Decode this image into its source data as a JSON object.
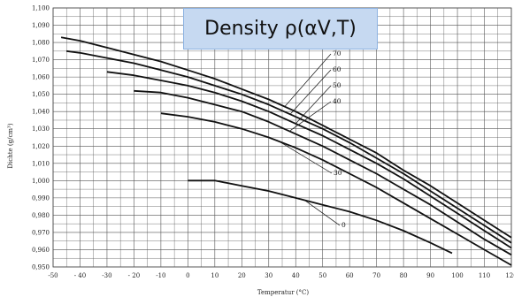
{
  "chart_data": {
    "type": "line",
    "title": "Density ρ(αV,T)",
    "xlabel": "Temperatur (°C)",
    "ylabel": "Dichte (g/cm³)",
    "xlim": [
      -50,
      120
    ],
    "ylim": [
      0.95,
      1.1
    ],
    "x_ticks": [
      "-50",
      "- 40",
      "-30",
      "- 20",
      "-10",
      "0",
      "10",
      "20",
      "30",
      "40",
      "50",
      "60",
      "70",
      "80",
      "90",
      "100",
      "110",
      "120"
    ],
    "y_ticks": [
      "0,950",
      "0,960",
      "0,970",
      "0,980",
      "0,990",
      "1,000",
      "1,010",
      "1,020",
      "1,030",
      "1,040",
      "1,050",
      "1,060",
      "1,070",
      "1,080",
      "1,090",
      "1,100"
    ],
    "grid": true,
    "series": [
      {
        "name": "0",
        "points": [
          [
            0,
            1.0
          ],
          [
            10,
            1.0
          ],
          [
            20,
            0.997
          ],
          [
            30,
            0.994
          ],
          [
            40,
            0.99
          ],
          [
            50,
            0.986
          ],
          [
            60,
            0.982
          ],
          [
            70,
            0.977
          ],
          [
            80,
            0.971
          ],
          [
            90,
            0.964
          ],
          [
            98,
            0.958
          ]
        ]
      },
      {
        "name": "30",
        "points": [
          [
            -10,
            1.039
          ],
          [
            0,
            1.037
          ],
          [
            10,
            1.034
          ],
          [
            20,
            1.03
          ],
          [
            30,
            1.025
          ],
          [
            40,
            1.019
          ],
          [
            50,
            1.012
          ],
          [
            60,
            1.004
          ],
          [
            70,
            0.996
          ],
          [
            80,
            0.987
          ],
          [
            90,
            0.978
          ],
          [
            100,
            0.969
          ],
          [
            110,
            0.96
          ],
          [
            120,
            0.951
          ]
        ]
      },
      {
        "name": "40",
        "points": [
          [
            -20,
            1.052
          ],
          [
            -10,
            1.051
          ],
          [
            0,
            1.048
          ],
          [
            10,
            1.044
          ],
          [
            20,
            1.04
          ],
          [
            30,
            1.034
          ],
          [
            40,
            1.027
          ],
          [
            50,
            1.02
          ],
          [
            60,
            1.012
          ],
          [
            70,
            1.004
          ],
          [
            80,
            0.995
          ],
          [
            90,
            0.986
          ],
          [
            100,
            0.976
          ],
          [
            110,
            0.966
          ],
          [
            120,
            0.957
          ]
        ]
      },
      {
        "name": "50",
        "points": [
          [
            -30,
            1.063
          ],
          [
            -20,
            1.061
          ],
          [
            -10,
            1.058
          ],
          [
            0,
            1.055
          ],
          [
            10,
            1.051
          ],
          [
            20,
            1.046
          ],
          [
            30,
            1.04
          ],
          [
            40,
            1.033
          ],
          [
            50,
            1.026
          ],
          [
            60,
            1.018
          ],
          [
            70,
            1.01
          ],
          [
            80,
            1.001
          ],
          [
            90,
            0.991
          ],
          [
            100,
            0.981
          ],
          [
            110,
            0.971
          ],
          [
            120,
            0.961
          ]
        ]
      },
      {
        "name": "60",
        "points": [
          [
            -45,
            1.075
          ],
          [
            -40,
            1.074
          ],
          [
            -30,
            1.071
          ],
          [
            -20,
            1.068
          ],
          [
            -10,
            1.064
          ],
          [
            0,
            1.06
          ],
          [
            10,
            1.055
          ],
          [
            20,
            1.05
          ],
          [
            30,
            1.044
          ],
          [
            40,
            1.037
          ],
          [
            50,
            1.03
          ],
          [
            60,
            1.022
          ],
          [
            70,
            1.013
          ],
          [
            80,
            1.004
          ],
          [
            90,
            0.994
          ],
          [
            100,
            0.984
          ],
          [
            110,
            0.974
          ],
          [
            120,
            0.964
          ]
        ]
      },
      {
        "name": "70",
        "points": [
          [
            -47,
            1.083
          ],
          [
            -40,
            1.081
          ],
          [
            -30,
            1.077
          ],
          [
            -20,
            1.073
          ],
          [
            -10,
            1.069
          ],
          [
            0,
            1.064
          ],
          [
            10,
            1.059
          ],
          [
            20,
            1.053
          ],
          [
            30,
            1.047
          ],
          [
            40,
            1.04
          ],
          [
            50,
            1.032
          ],
          [
            60,
            1.024
          ],
          [
            70,
            1.016
          ],
          [
            80,
            1.006
          ],
          [
            90,
            0.997
          ],
          [
            100,
            0.987
          ],
          [
            110,
            0.977
          ],
          [
            120,
            0.967
          ]
        ]
      }
    ]
  }
}
